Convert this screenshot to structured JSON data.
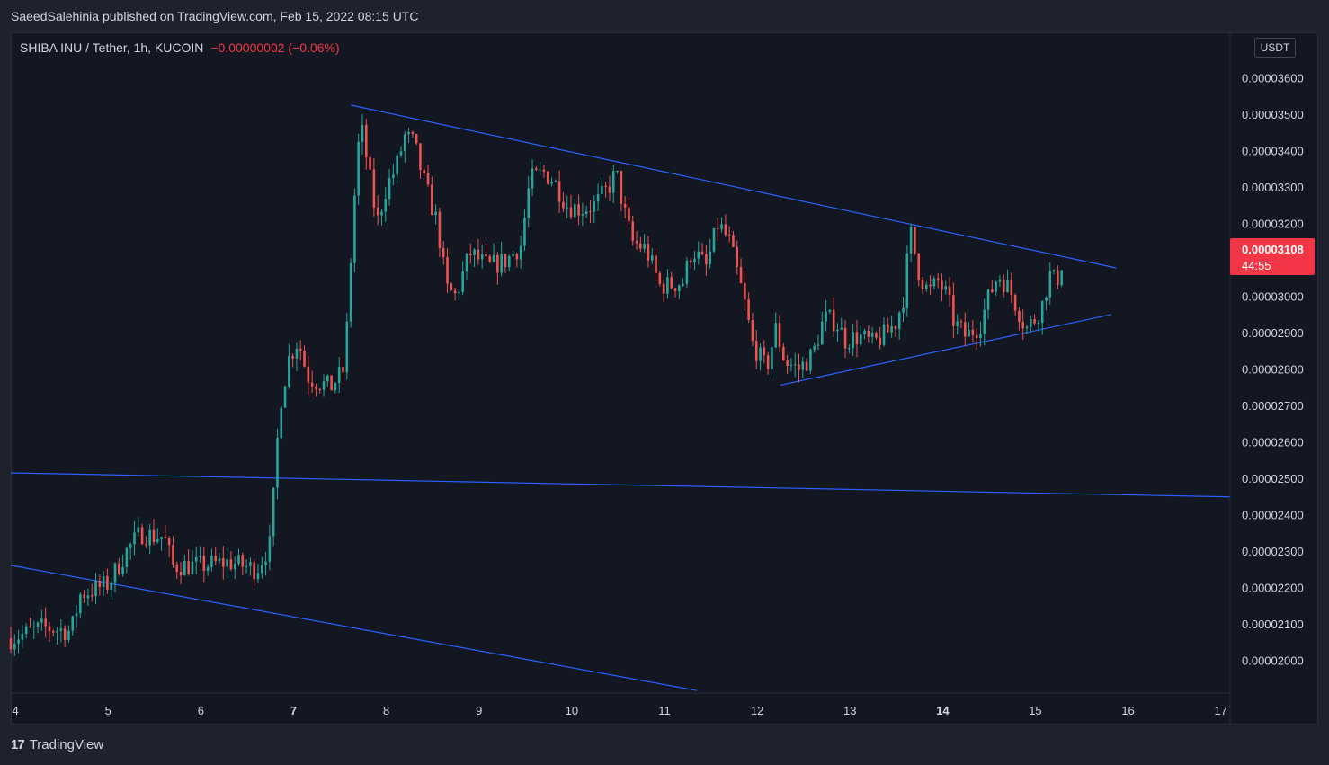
{
  "header": {
    "publish_line": "SaeedSalehinia published on TradingView.com, Feb 15, 2022 08:15 UTC"
  },
  "legend": {
    "symbol": "SHIBA INU / Tether, 1h, KUCOIN",
    "change": "−0.00000002 (−0.06%)"
  },
  "currency_button": "USDT",
  "price_label": {
    "value": "0.00003108",
    "countdown": "44:55"
  },
  "footer": {
    "brand": "TradingView",
    "logo_glyph": "17"
  },
  "colors": {
    "background": "#131722",
    "up": "#26a69a",
    "down": "#ef5350",
    "trendline": "#2962ff",
    "text": "#d1d4dc",
    "price_label_bg": "#f23645"
  },
  "chart_data": {
    "type": "candlestick",
    "title": "SHIBA INU / Tether, 1h, KUCOIN",
    "x_unit": "day of February 2022",
    "x_ticks": [
      4,
      5,
      6,
      7,
      8,
      9,
      10,
      11,
      12,
      13,
      14,
      15,
      16,
      17
    ],
    "y_ticks": [
      "0.00002000",
      "0.00002100",
      "0.00002200",
      "0.00002300",
      "0.00002400",
      "0.00002500",
      "0.00002600",
      "0.00002700",
      "0.00002800",
      "0.00002900",
      "0.00003000",
      "0.00003100",
      "0.00003200",
      "0.00003300",
      "0.00003400",
      "0.00003500",
      "0.00003600"
    ],
    "ylim": [
      1.91e-05,
      3.725e-05
    ],
    "xlim": [
      3.95,
      17.1
    ],
    "grid": false,
    "price_path": [
      [
        3.95,
        2.06e-05
      ],
      [
        4.3,
        2.09e-05
      ],
      [
        4.6,
        2.08e-05
      ],
      [
        4.7,
        2.18e-05
      ],
      [
        5.0,
        2.21e-05
      ],
      [
        5.2,
        2.3e-05
      ],
      [
        5.35,
        2.35e-05
      ],
      [
        5.5,
        2.34e-05
      ],
      [
        5.6,
        2.34e-05
      ],
      [
        5.7,
        2.26e-05
      ],
      [
        6.0,
        2.26e-05
      ],
      [
        6.3,
        2.27e-05
      ],
      [
        6.6,
        2.25e-05
      ],
      [
        6.75,
        2.32e-05
      ],
      [
        6.85,
        2.7e-05
      ],
      [
        6.95,
        2.83e-05
      ],
      [
        7.05,
        2.88e-05
      ],
      [
        7.15,
        2.78e-05
      ],
      [
        7.3,
        2.76e-05
      ],
      [
        7.4,
        2.75e-05
      ],
      [
        7.55,
        2.8e-05
      ],
      [
        7.65,
        3.25e-05
      ],
      [
        7.72,
        3.48e-05
      ],
      [
        7.8,
        3.36e-05
      ],
      [
        7.9,
        3.2e-05
      ],
      [
        8.0,
        3.3e-05
      ],
      [
        8.1,
        3.35e-05
      ],
      [
        8.2,
        3.44e-05
      ],
      [
        8.3,
        3.42e-05
      ],
      [
        8.4,
        3.32e-05
      ],
      [
        8.55,
        3.2e-05
      ],
      [
        8.65,
        3.02e-05
      ],
      [
        8.75,
        3e-05
      ],
      [
        8.9,
        3.12e-05
      ],
      [
        9.1,
        3.08e-05
      ],
      [
        9.3,
        3.1e-05
      ],
      [
        9.45,
        3.14e-05
      ],
      [
        9.55,
        3.32e-05
      ],
      [
        9.7,
        3.34e-05
      ],
      [
        9.8,
        3.32e-05
      ],
      [
        9.95,
        3.25e-05
      ],
      [
        10.1,
        3.24e-05
      ],
      [
        10.25,
        3.25e-05
      ],
      [
        10.4,
        3.3e-05
      ],
      [
        10.48,
        3.34e-05
      ],
      [
        10.55,
        3.25e-05
      ],
      [
        10.65,
        3.15e-05
      ],
      [
        10.8,
        3.13e-05
      ],
      [
        10.95,
        3.03e-05
      ],
      [
        11.05,
        3.03e-05
      ],
      [
        11.2,
        3.04e-05
      ],
      [
        11.3,
        3.13e-05
      ],
      [
        11.45,
        3.08e-05
      ],
      [
        11.58,
        3.2e-05
      ],
      [
        11.7,
        3.15e-05
      ],
      [
        11.85,
        3e-05
      ],
      [
        11.95,
        2.87e-05
      ],
      [
        12.1,
        2.8e-05
      ],
      [
        12.2,
        2.91e-05
      ],
      [
        12.3,
        2.82e-05
      ],
      [
        12.45,
        2.8e-05
      ],
      [
        12.6,
        2.84e-05
      ],
      [
        12.72,
        2.94e-05
      ],
      [
        12.85,
        2.93e-05
      ],
      [
        12.95,
        2.88e-05
      ],
      [
        13.1,
        2.89e-05
      ],
      [
        13.25,
        2.87e-05
      ],
      [
        13.4,
        2.9e-05
      ],
      [
        13.5,
        2.93e-05
      ],
      [
        13.58,
        3e-05
      ],
      [
        13.65,
        3.18e-05
      ],
      [
        13.75,
        3.06e-05
      ],
      [
        13.85,
        3.01e-05
      ],
      [
        13.95,
        3.04e-05
      ],
      [
        14.05,
        3e-05
      ],
      [
        14.12,
        2.93e-05
      ],
      [
        14.25,
        2.89e-05
      ],
      [
        14.4,
        2.92e-05
      ],
      [
        14.5,
        3e-05
      ],
      [
        14.6,
        3.06e-05
      ],
      [
        14.72,
        3.02e-05
      ],
      [
        14.82,
        2.96e-05
      ],
      [
        14.9,
        2.91e-05
      ],
      [
        15.0,
        2.94e-05
      ],
      [
        15.08,
        2.98e-05
      ],
      [
        15.15,
        3.06e-05
      ],
      [
        15.22,
        3.04e-05
      ],
      [
        15.3,
        3.08e-05
      ],
      [
        15.32,
        3.108e-05
      ]
    ],
    "trendlines": [
      {
        "name": "triangle-upper",
        "points": [
          [
            7.62,
            3.525e-05
          ],
          [
            15.87,
            3.078e-05
          ]
        ]
      },
      {
        "name": "triangle-lower",
        "points": [
          [
            12.25,
            2.756e-05
          ],
          [
            15.82,
            2.95e-05
          ]
        ]
      },
      {
        "name": "horizontal-support",
        "points": [
          [
            3.95,
            2.515e-05
          ],
          [
            17.1,
            2.449e-05
          ]
        ]
      },
      {
        "name": "channel-lower",
        "points": [
          [
            3.95,
            2.261e-05
          ],
          [
            11.35,
            1.917e-05
          ]
        ]
      }
    ]
  }
}
